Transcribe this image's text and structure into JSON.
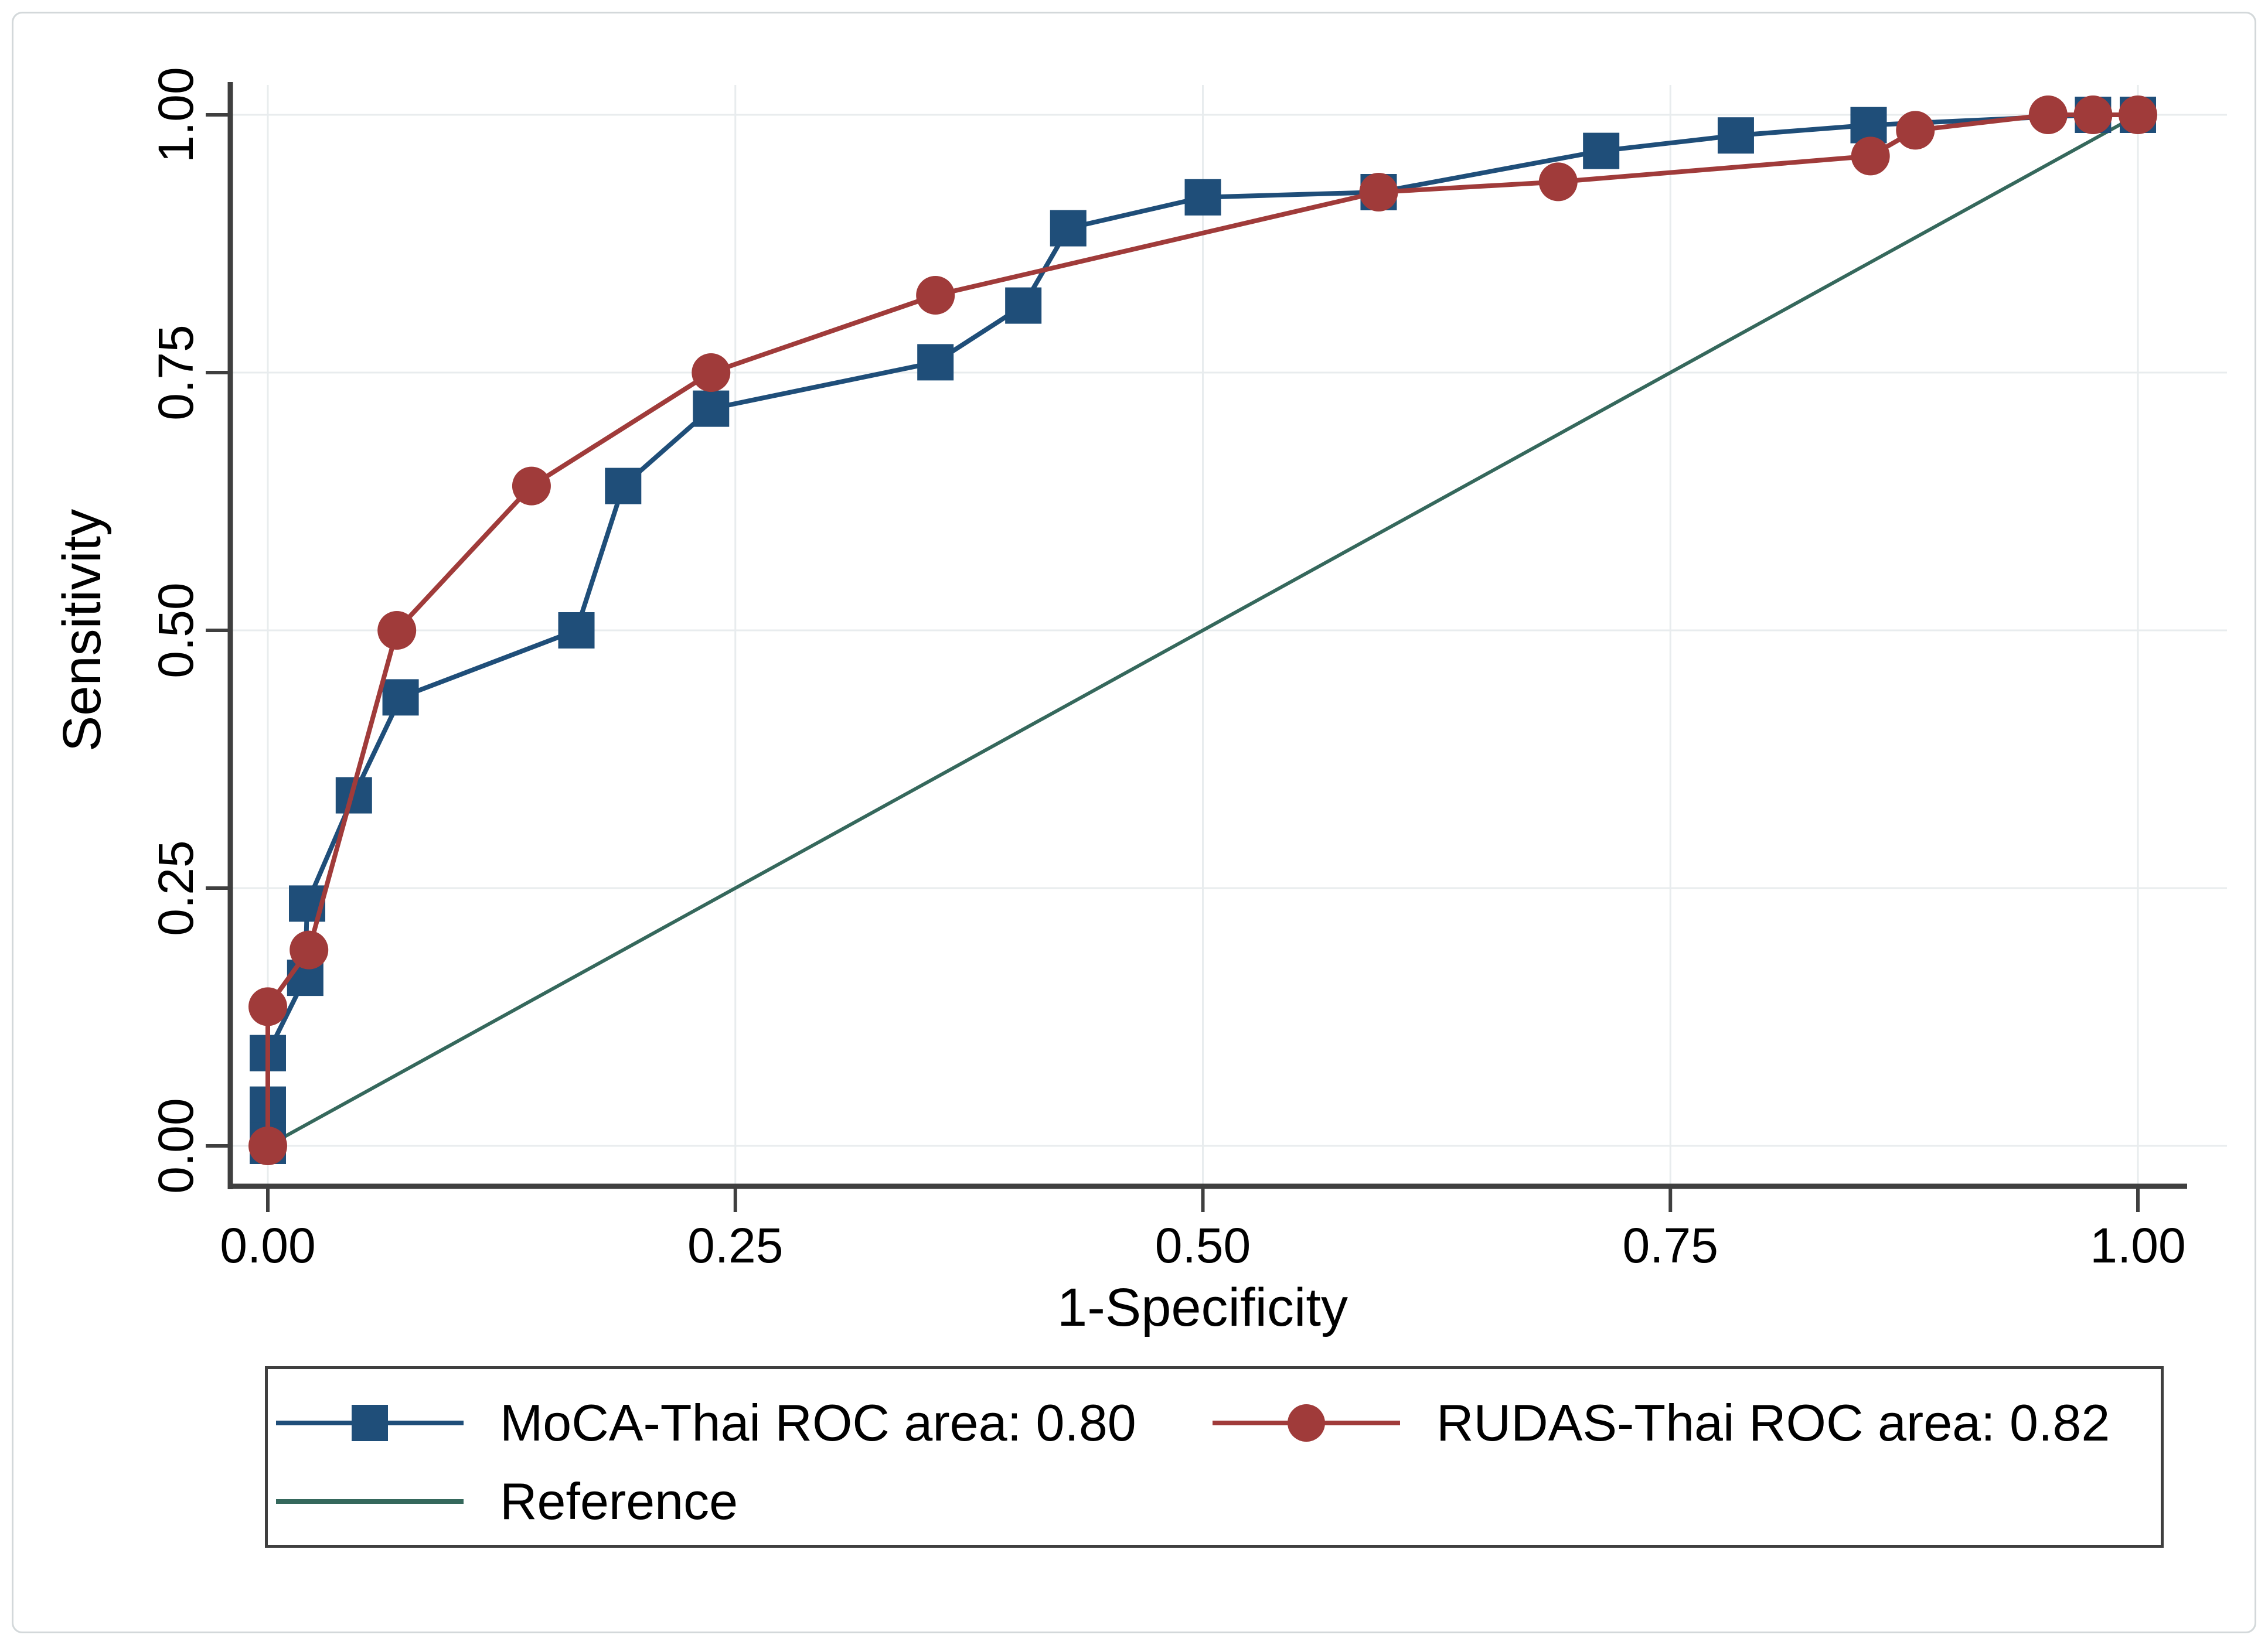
{
  "figure": {
    "background_color": "#ffffff",
    "border_color": "#d3d8da",
    "axis_color": "#3f3f3f",
    "grid_color": "#e8ecee",
    "text_color": "#000000"
  },
  "chart_data": {
    "type": "line",
    "subtype": "roc-curves",
    "title": "",
    "xlabel": "1-Specificity",
    "ylabel": "Sensitivity",
    "xlim": [
      -0.02,
      1.045
    ],
    "ylim": [
      -0.04,
      1.04
    ],
    "grid": true,
    "legend_position": "bottom",
    "x_ticks": {
      "values": [
        0,
        0.25,
        0.5,
        0.75,
        1.0
      ],
      "labels": [
        "0.00",
        "0.25",
        "0.50",
        "0.75",
        "1.00"
      ]
    },
    "y_ticks": {
      "values": [
        0,
        0.25,
        0.5,
        0.75,
        1.0
      ],
      "labels": [
        "0.00",
        "0.25",
        "0.50",
        "0.75",
        "1.00"
      ]
    },
    "series": [
      {
        "name": "MoCA-Thai ROC area: 0.80",
        "roc_area": 0.8,
        "color": "#1f4e79",
        "marker": "square",
        "line_width": 8,
        "points": [
          [
            0.0,
            0.0
          ],
          [
            0.0,
            0.02
          ],
          [
            0.0,
            0.04
          ],
          [
            0.0,
            0.09
          ],
          [
            0.02,
            0.163
          ],
          [
            0.021,
            0.235
          ],
          [
            0.046,
            0.34
          ],
          [
            0.071,
            0.435
          ],
          [
            0.165,
            0.5
          ],
          [
            0.19,
            0.64
          ],
          [
            0.237,
            0.715
          ],
          [
            0.357,
            0.76
          ],
          [
            0.404,
            0.815
          ],
          [
            0.428,
            0.89
          ],
          [
            0.5,
            0.92
          ],
          [
            0.594,
            0.925
          ],
          [
            0.713,
            0.965
          ],
          [
            0.785,
            0.98
          ],
          [
            0.856,
            0.99
          ],
          [
            0.976,
            1.0
          ],
          [
            1.0,
            1.0
          ]
        ]
      },
      {
        "name": "RUDAS-Thai ROC area: 0.82",
        "roc_area": 0.82,
        "color": "#a03b3a",
        "marker": "circle",
        "line_width": 8,
        "points": [
          [
            0.0,
            0.0
          ],
          [
            0.0,
            0.135
          ],
          [
            0.022,
            0.19
          ],
          [
            0.069,
            0.5
          ],
          [
            0.141,
            0.64
          ],
          [
            0.237,
            0.75
          ],
          [
            0.357,
            0.825
          ],
          [
            0.594,
            0.925
          ],
          [
            0.69,
            0.935
          ],
          [
            0.857,
            0.96
          ],
          [
            0.881,
            0.985
          ],
          [
            0.952,
            1.0
          ],
          [
            0.976,
            1.0
          ],
          [
            1.0,
            1.0
          ]
        ]
      },
      {
        "name": "Reference",
        "color": "#35685c",
        "marker": "none",
        "line_width": 6,
        "points": [
          [
            0.0,
            0.0
          ],
          [
            1.0,
            1.0
          ]
        ]
      }
    ]
  }
}
